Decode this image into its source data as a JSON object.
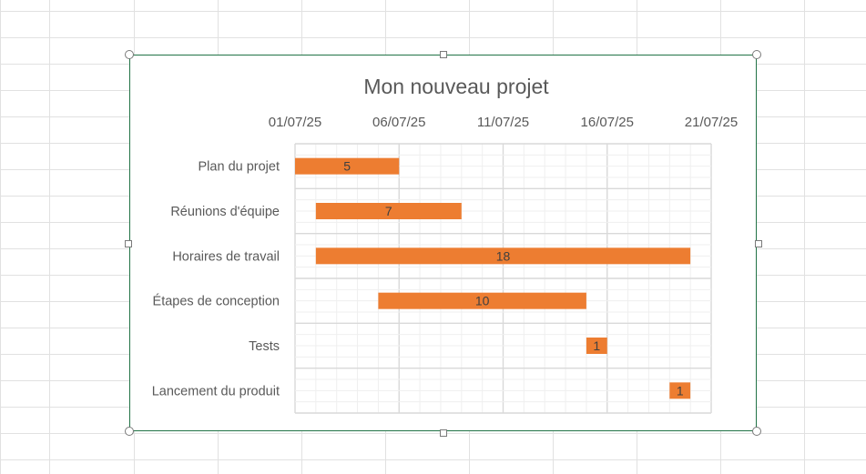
{
  "chart_data": {
    "type": "bar",
    "orientation": "horizontal",
    "stacked": true,
    "title": "Mon nouveau projet",
    "xlabel": "",
    "ylabel": "",
    "x_axis": {
      "type": "date",
      "position": "top",
      "range": [
        "2025-07-01",
        "2025-07-21"
      ],
      "ticks": [
        "01/07/25",
        "06/07/25",
        "11/07/25",
        "16/07/25",
        "21/07/25"
      ]
    },
    "grid": true,
    "legend": "none",
    "colors": {
      "bar": "#ED7D31",
      "grid_major": "#d9d9d9",
      "grid_minor": "#efefef",
      "text": "#595959",
      "frame": "#217346"
    },
    "categories": [
      "Plan du projet",
      "Réunions d'équipe",
      "Horaires de travail",
      "Étapes de conception",
      "Tests",
      "Lancement du produit"
    ],
    "start_dates": [
      "2025-07-01",
      "2025-07-02",
      "2025-07-02",
      "2025-07-05",
      "2025-07-15",
      "2025-07-19"
    ],
    "durations": [
      5,
      7,
      18,
      10,
      1,
      1
    ],
    "duration_labels": [
      "5",
      "7",
      "18",
      "10",
      "1",
      "1"
    ]
  }
}
